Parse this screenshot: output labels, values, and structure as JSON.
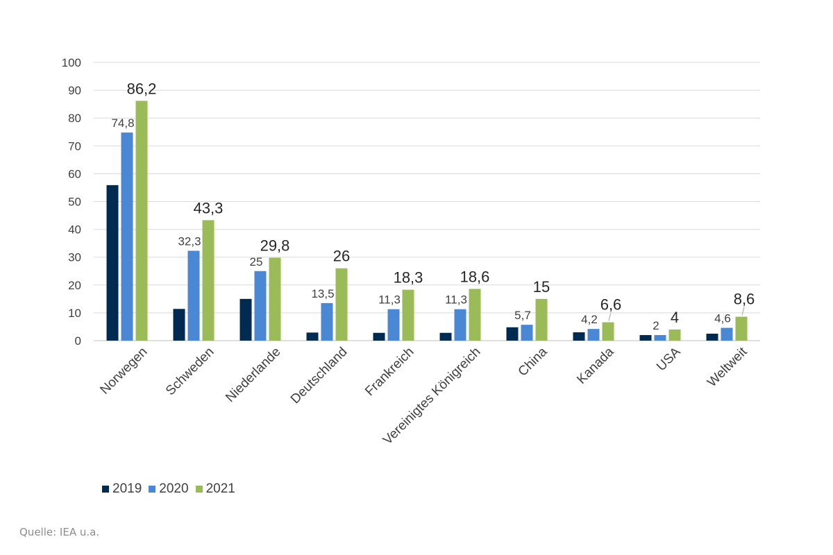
{
  "chart_data": {
    "type": "bar",
    "categories": [
      "Norwegen",
      "Schweden",
      "Niederlande",
      "Deutschland",
      "Frankreich",
      "Vereinigtes Königreich",
      "China",
      "Kanada",
      "USA",
      "Weltweit"
    ],
    "series": [
      {
        "name": "2019",
        "color": "#002b50",
        "values": [
          55.9,
          11.4,
          15.0,
          2.9,
          2.8,
          2.8,
          4.8,
          3.0,
          2.0,
          2.5
        ],
        "labels": [
          "",
          "",
          "",
          "",
          "",
          "",
          "",
          "",
          "",
          ""
        ]
      },
      {
        "name": "2020",
        "color": "#4a87d4",
        "values": [
          74.8,
          32.3,
          25,
          13.5,
          11.3,
          11.3,
          5.7,
          4.2,
          2,
          4.6
        ],
        "labels": [
          "74,8",
          "32,3",
          "25",
          "13,5",
          "11,3",
          "11,3",
          "5,7",
          "4,2",
          "2",
          "4,6"
        ]
      },
      {
        "name": "2021",
        "color": "#9bbb59",
        "values": [
          86.2,
          43.3,
          29.8,
          26,
          18.3,
          18.6,
          15,
          6.6,
          4,
          8.6
        ],
        "labels": [
          "86,2",
          "43,3",
          "29,8",
          "26",
          "18,3",
          "18,6",
          "15",
          "6,6",
          "4",
          "8,6"
        ]
      }
    ],
    "ylim": [
      0,
      100
    ],
    "yticks": [
      0,
      10,
      20,
      30,
      40,
      50,
      60,
      70,
      80,
      90,
      100
    ],
    "grid": true,
    "legend_position": "bottom-left",
    "title": "",
    "xlabel": "",
    "ylabel": ""
  },
  "legend": {
    "items": [
      "2019",
      "2020",
      "2021"
    ]
  },
  "source": "Quelle: IEA u.a."
}
